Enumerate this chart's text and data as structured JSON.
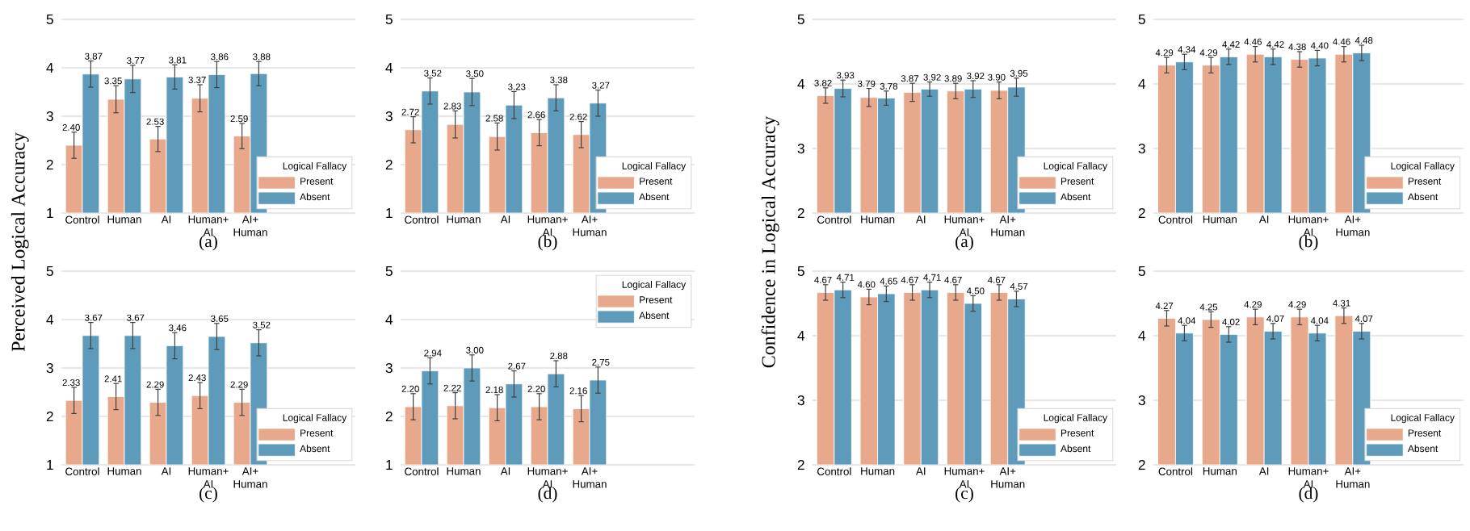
{
  "chart_data": [
    {
      "type": "bar",
      "xlabel": "(a)",
      "ylabel": "Perceived Logical Accuracy",
      "categories": [
        "Control",
        "Human",
        "AI",
        "Human+ AI",
        "AI+ Human"
      ],
      "ylim": [
        1,
        5
      ],
      "yticks": [
        1,
        2,
        3,
        4,
        5
      ],
      "grid": "y",
      "legend": "bottom right",
      "legend_title": "Logical Fallacy",
      "series": [
        {
          "name": "Present",
          "color": "#e8a88b",
          "values": [
            2.4,
            3.35,
            2.53,
            3.37,
            2.59
          ],
          "errors": [
            0.27,
            0.28,
            0.26,
            0.28,
            0.26
          ],
          "value_labels": [
            "2.40",
            "3.35",
            "2.53",
            "3.37",
            "2.59"
          ]
        },
        {
          "name": "Absent",
          "color": "#5e9ab9",
          "values": [
            3.87,
            3.77,
            3.81,
            3.86,
            3.88
          ],
          "errors": [
            0.27,
            0.28,
            0.25,
            0.27,
            0.25
          ],
          "value_labels": [
            "3.87",
            "3.77",
            "3.81",
            "3.86",
            "3.88"
          ]
        }
      ]
    },
    {
      "type": "bar",
      "xlabel": "(b)",
      "categories": [
        "Control",
        "Human",
        "AI",
        "Human+ AI",
        "AI+ Human"
      ],
      "ylim": [
        1,
        5
      ],
      "yticks": [
        1,
        2,
        3,
        4,
        5
      ],
      "grid": "y",
      "legend": "bottom right",
      "legend_title": "Logical Fallacy",
      "series": [
        {
          "name": "Present",
          "color": "#e8a88b",
          "values": [
            2.72,
            2.83,
            2.58,
            2.66,
            2.62
          ],
          "errors": [
            0.27,
            0.28,
            0.28,
            0.27,
            0.27
          ],
          "value_labels": [
            "2.72",
            "2.83",
            "2.58",
            "2.66",
            "2.62"
          ]
        },
        {
          "name": "Absent",
          "color": "#5e9ab9",
          "values": [
            3.52,
            3.5,
            3.23,
            3.38,
            3.27
          ],
          "errors": [
            0.27,
            0.28,
            0.28,
            0.27,
            0.27
          ],
          "value_labels": [
            "3.52",
            "3.50",
            "3.23",
            "3.38",
            "3.27"
          ]
        }
      ]
    },
    {
      "type": "bar",
      "xlabel": "(c)",
      "categories": [
        "Control",
        "Human",
        "AI",
        "Human+ AI",
        "AI+ Human"
      ],
      "ylim": [
        1,
        5
      ],
      "yticks": [
        1,
        2,
        3,
        4,
        5
      ],
      "grid": "y",
      "legend": "bottom right",
      "legend_title": "Logical Fallacy",
      "series": [
        {
          "name": "Present",
          "color": "#e8a88b",
          "values": [
            2.33,
            2.41,
            2.29,
            2.43,
            2.29
          ],
          "errors": [
            0.27,
            0.27,
            0.27,
            0.27,
            0.27
          ],
          "value_labels": [
            "2.33",
            "2.41",
            "2.29",
            "2.43",
            "2.29"
          ]
        },
        {
          "name": "Absent",
          "color": "#5e9ab9",
          "values": [
            3.67,
            3.67,
            3.46,
            3.65,
            3.52
          ],
          "errors": [
            0.27,
            0.27,
            0.27,
            0.27,
            0.27
          ],
          "value_labels": [
            "3.67",
            "3.67",
            "3.46",
            "3.65",
            "3.52"
          ]
        }
      ]
    },
    {
      "type": "bar",
      "xlabel": "(d)",
      "categories": [
        "Control",
        "Human",
        "AI",
        "Human+ AI",
        "AI+ Human"
      ],
      "ylim": [
        1,
        5
      ],
      "yticks": [
        1,
        2,
        3,
        4,
        5
      ],
      "grid": "y",
      "legend": "top right",
      "legend_title": "Logical Fallacy",
      "series": [
        {
          "name": "Present",
          "color": "#e8a88b",
          "values": [
            2.2,
            2.22,
            2.18,
            2.2,
            2.16
          ],
          "errors": [
            0.27,
            0.27,
            0.27,
            0.27,
            0.27
          ],
          "value_labels": [
            "2.20",
            "2.22",
            "2.18",
            "2.20",
            "2.16"
          ]
        },
        {
          "name": "Absent",
          "color": "#5e9ab9",
          "values": [
            2.94,
            3.0,
            2.67,
            2.88,
            2.75
          ],
          "errors": [
            0.27,
            0.27,
            0.27,
            0.27,
            0.27
          ],
          "value_labels": [
            "2.94",
            "3.00",
            "2.67",
            "2.88",
            "2.75"
          ]
        }
      ]
    },
    {
      "type": "bar",
      "xlabel": "(a)",
      "ylabel": "Confidence in Logical Accuracy",
      "categories": [
        "Control",
        "Human",
        "AI",
        "Human+ AI",
        "AI+ Human"
      ],
      "ylim": [
        2,
        5
      ],
      "yticks": [
        2,
        3,
        4,
        5
      ],
      "grid": "y",
      "legend": "bottom right",
      "legend_title": "Logical Fallacy",
      "series": [
        {
          "name": "Present",
          "color": "#e8a88b",
          "values": [
            3.82,
            3.79,
            3.87,
            3.89,
            3.9
          ],
          "errors": [
            0.12,
            0.14,
            0.14,
            0.12,
            0.13
          ],
          "value_labels": [
            "3.82",
            "3.79",
            "3.87",
            "3.89",
            "3.90"
          ]
        },
        {
          "name": "Absent",
          "color": "#5e9ab9",
          "values": [
            3.93,
            3.78,
            3.92,
            3.92,
            3.95
          ],
          "errors": [
            0.13,
            0.11,
            0.11,
            0.13,
            0.14
          ],
          "value_labels": [
            "3.93",
            "3.78",
            "3.92",
            "3.92",
            "3.95"
          ]
        }
      ]
    },
    {
      "type": "bar",
      "xlabel": "(b)",
      "categories": [
        "Control",
        "Human",
        "AI",
        "Human+ AI",
        "AI+ Human"
      ],
      "ylim": [
        2,
        5
      ],
      "yticks": [
        2,
        3,
        4,
        5
      ],
      "grid": "y",
      "legend": "bottom right",
      "legend_title": "Logical Fallacy",
      "series": [
        {
          "name": "Present",
          "color": "#e8a88b",
          "values": [
            4.29,
            4.29,
            4.46,
            4.38,
            4.46
          ],
          "errors": [
            0.12,
            0.12,
            0.12,
            0.12,
            0.12
          ],
          "value_labels": [
            "4.29",
            "4.29",
            "4.46",
            "4.38",
            "4.46"
          ]
        },
        {
          "name": "Absent",
          "color": "#5e9ab9",
          "values": [
            4.34,
            4.42,
            4.42,
            4.4,
            4.48
          ],
          "errors": [
            0.12,
            0.12,
            0.12,
            0.12,
            0.12
          ],
          "value_labels": [
            "4.34",
            "4.42",
            "4.42",
            "4.40",
            "4.48"
          ]
        }
      ]
    },
    {
      "type": "bar",
      "xlabel": "(c)",
      "categories": [
        "Control",
        "Human",
        "AI",
        "Human+ AI",
        "AI+ Human"
      ],
      "ylim": [
        2,
        5
      ],
      "yticks": [
        2,
        3,
        4,
        5
      ],
      "grid": "y",
      "legend": "bottom right",
      "legend_title": "Logical Fallacy",
      "series": [
        {
          "name": "Present",
          "color": "#e8a88b",
          "values": [
            4.67,
            4.6,
            4.67,
            4.67,
            4.67
          ],
          "errors": [
            0.12,
            0.12,
            0.12,
            0.12,
            0.12
          ],
          "value_labels": [
            "4.67",
            "4.60",
            "4.67",
            "4.67",
            "4.67"
          ]
        },
        {
          "name": "Absent",
          "color": "#5e9ab9",
          "values": [
            4.71,
            4.65,
            4.71,
            4.5,
            4.57
          ],
          "errors": [
            0.12,
            0.12,
            0.12,
            0.12,
            0.12
          ],
          "value_labels": [
            "4.71",
            "4.65",
            "4.71",
            "4.50",
            "4.57"
          ]
        }
      ]
    },
    {
      "type": "bar",
      "xlabel": "(d)",
      "categories": [
        "Control",
        "Human",
        "AI",
        "Human+ AI",
        "AI+ Human"
      ],
      "ylim": [
        2,
        5
      ],
      "yticks": [
        2,
        3,
        4,
        5
      ],
      "grid": "y",
      "legend": "bottom right",
      "legend_title": "Logical Fallacy",
      "series": [
        {
          "name": "Present",
          "color": "#e8a88b",
          "values": [
            4.27,
            4.25,
            4.29,
            4.29,
            4.31
          ],
          "errors": [
            0.12,
            0.12,
            0.12,
            0.12,
            0.12
          ],
          "value_labels": [
            "4.27",
            "4.25",
            "4.29",
            "4.29",
            "4.31"
          ]
        },
        {
          "name": "Absent",
          "color": "#5e9ab9",
          "values": [
            4.04,
            4.02,
            4.07,
            4.04,
            4.07
          ],
          "errors": [
            0.12,
            0.12,
            0.12,
            0.12,
            0.12
          ],
          "value_labels": [
            "4.04",
            "4.02",
            "4.07",
            "4.04",
            "4.07"
          ]
        }
      ]
    }
  ]
}
